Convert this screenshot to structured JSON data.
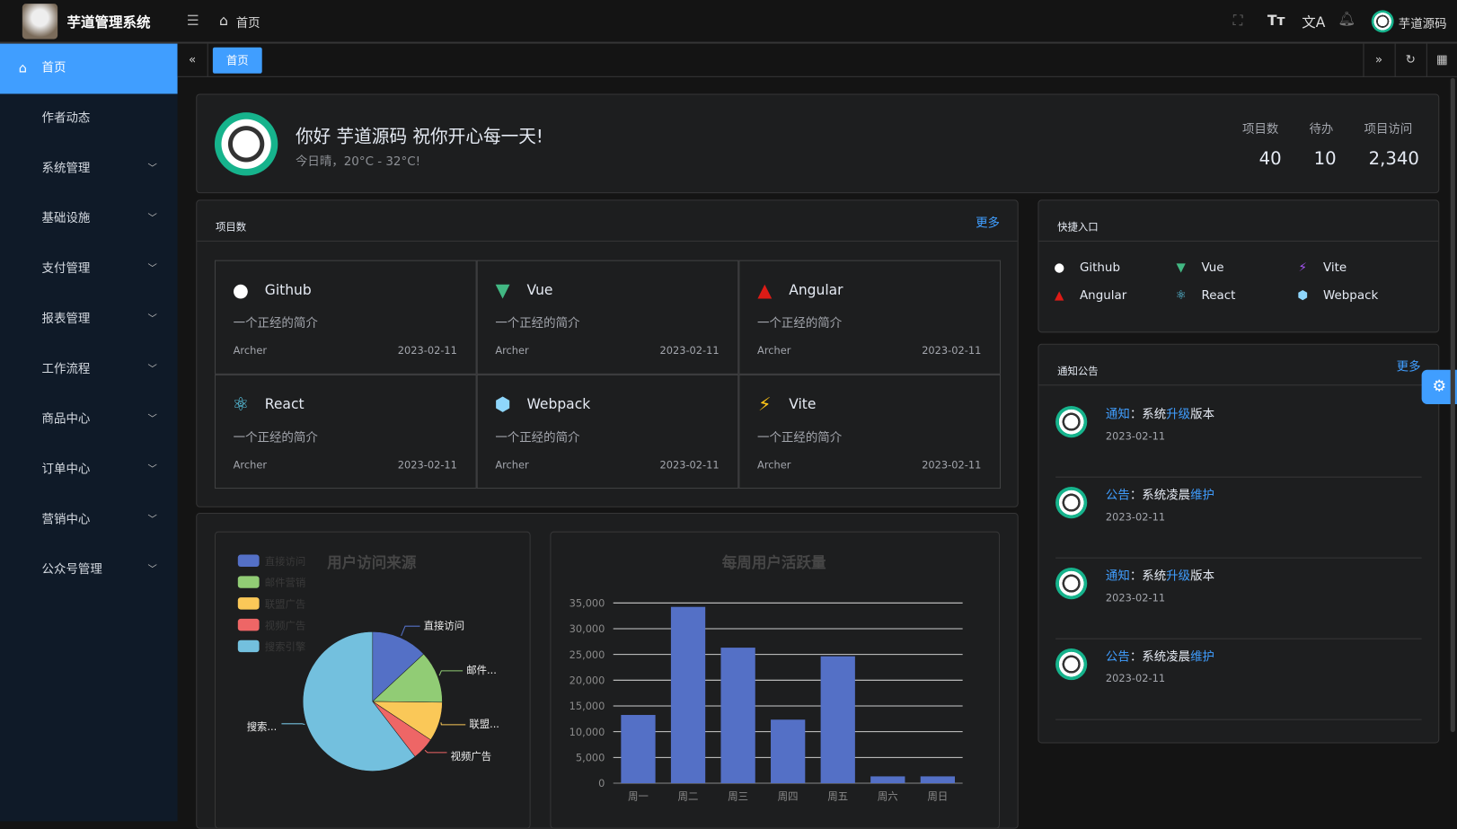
{
  "app": {
    "title": "芋道管理系统",
    "breadcrumb": "首页",
    "user": "芋道源码"
  },
  "header_icons": [
    "menu-fold-icon",
    "home-icon",
    "fullscreen-icon",
    "font-size-icon",
    "translate-icon",
    "bell-icon"
  ],
  "sidebar": {
    "items": [
      {
        "label": "首页",
        "active": true
      },
      {
        "label": "作者动态"
      },
      {
        "label": "系统管理",
        "sub": true
      },
      {
        "label": "基础设施",
        "sub": true
      },
      {
        "label": "支付管理",
        "sub": true
      },
      {
        "label": "报表管理",
        "sub": true
      },
      {
        "label": "工作流程",
        "sub": true
      },
      {
        "label": "商品中心",
        "sub": true
      },
      {
        "label": "订单中心",
        "sub": true
      },
      {
        "label": "营销中心",
        "sub": true
      },
      {
        "label": "公众号管理",
        "sub": true
      }
    ]
  },
  "tabs": [
    {
      "label": "首页",
      "active": true
    }
  ],
  "welcome": {
    "greeting": "你好 芋道源码 祝你开心每一天!",
    "weather": "今日晴，20°C - 32°C!",
    "stats": [
      {
        "label": "项目数",
        "value": "40"
      },
      {
        "label": "待办",
        "value": "10"
      },
      {
        "label": "项目访问",
        "value": "2,340"
      }
    ]
  },
  "projects": {
    "title": "项目数",
    "more": "更多",
    "items": [
      {
        "name": "Github",
        "desc": "一个正经的简介",
        "author": "Archer",
        "date": "2023-02-11",
        "icon": "github-icon",
        "color": "#ffffff"
      },
      {
        "name": "Vue",
        "desc": "一个正经的简介",
        "author": "Archer",
        "date": "2023-02-11",
        "icon": "vue-icon",
        "color": "#42b883"
      },
      {
        "name": "Angular",
        "desc": "一个正经的简介",
        "author": "Archer",
        "date": "2023-02-11",
        "icon": "angular-icon",
        "color": "#dd1b16"
      },
      {
        "name": "React",
        "desc": "一个正经的简介",
        "author": "Archer",
        "date": "2023-02-11",
        "icon": "react-icon",
        "color": "#61dafb"
      },
      {
        "name": "Webpack",
        "desc": "一个正经的简介",
        "author": "Archer",
        "date": "2023-02-11",
        "icon": "webpack-icon",
        "color": "#8ed6fb"
      },
      {
        "name": "Vite",
        "desc": "一个正经的简介",
        "author": "Archer",
        "date": "2023-02-11",
        "icon": "vite-icon",
        "color": "#ffc517"
      }
    ]
  },
  "shortcuts": {
    "title": "快捷入口",
    "items": [
      {
        "name": "Github",
        "color": "#ffffff"
      },
      {
        "name": "Vue",
        "color": "#42b883"
      },
      {
        "name": "Vite",
        "color": "#a855f7"
      },
      {
        "name": "Angular",
        "color": "#dd1b16"
      },
      {
        "name": "React",
        "color": "#61dafb"
      },
      {
        "name": "Webpack",
        "color": "#8ed6fb"
      }
    ]
  },
  "notices": {
    "title": "通知公告",
    "more": "更多",
    "items": [
      {
        "type": "通知",
        "sep": "：",
        "pre": "系统",
        "hl": "升级",
        "post": "版本",
        "date": "2023-02-11"
      },
      {
        "type": "公告",
        "sep": "：",
        "pre": "系统凌晨",
        "hl": "维护",
        "post": "",
        "date": "2023-02-11"
      },
      {
        "type": "通知",
        "sep": "：",
        "pre": "系统",
        "hl": "升级",
        "post": "版本",
        "date": "2023-02-11"
      },
      {
        "type": "公告",
        "sep": "：",
        "pre": "系统凌晨",
        "hl": "维护",
        "post": "",
        "date": "2023-02-11"
      }
    ]
  },
  "chart_data": [
    {
      "type": "pie",
      "title": "用户访问来源",
      "legend_position": "top-left",
      "categories": [
        "直接访问",
        "邮件营销",
        "联盟广告",
        "视频广告",
        "搜索引擎"
      ],
      "labels": [
        "直接访问",
        "邮件...",
        "联盟...",
        "视频广告",
        "搜索..."
      ],
      "values": [
        335,
        310,
        234,
        135,
        1548
      ],
      "colors": [
        "#5470c6",
        "#91cc75",
        "#fac858",
        "#ee6666",
        "#73c0de"
      ]
    },
    {
      "type": "bar",
      "title": "每周用户活跃量",
      "categories": [
        "周一",
        "周二",
        "周三",
        "周四",
        "周五",
        "周六",
        "周日"
      ],
      "values": [
        13253,
        34235,
        26321,
        12340,
        24643,
        1322,
        1324
      ],
      "yticks": [
        "0",
        "5,000",
        "10,000",
        "15,000",
        "20,000",
        "25,000",
        "30,000",
        "35,000"
      ],
      "ylim": [
        0,
        35000
      ],
      "grid": true,
      "color": "#5470c6"
    }
  ],
  "accent": "#409eff"
}
